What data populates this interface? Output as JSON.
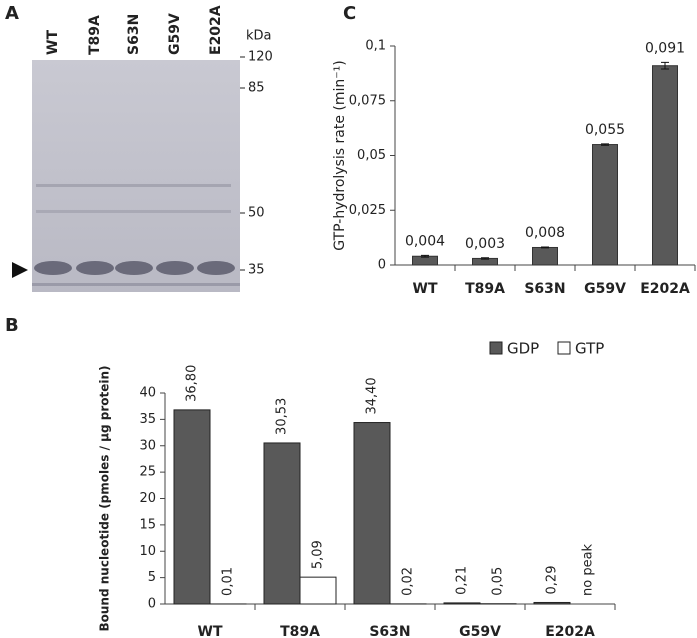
{
  "gel": {
    "panel_label": "A",
    "lanes": [
      "WT",
      "T89A",
      "S63N",
      "G59V",
      "E202A"
    ],
    "unit": "kDa",
    "markers": [
      120,
      85,
      50,
      35
    ]
  },
  "chart_data": [
    {
      "type": "bar",
      "panel_label": "C",
      "y_label": "GTP-hydrolysis rate (min⁻¹)",
      "categories": [
        "WT",
        "T89A",
        "S63N",
        "G59V",
        "E202A"
      ],
      "values": [
        0.004,
        0.003,
        0.008,
        0.055,
        0.091
      ],
      "value_labels": [
        "0,004",
        "0,003",
        "0,008",
        "0,055",
        "0,091"
      ],
      "errors": [
        0.0004,
        0.0003,
        0.0002,
        0.0003,
        0.0015
      ],
      "color": "#595959",
      "ylim": [
        0,
        0.1
      ],
      "yticks": [
        0,
        {
          "value": 0.025,
          "label": "0,025"
        },
        {
          "value": 0.05,
          "label": "0,05"
        },
        {
          "value": 0.075,
          "label": "0,075"
        },
        {
          "value": 0.1,
          "label": "0,1"
        }
      ]
    },
    {
      "type": "grouped-bar",
      "panel_label": "B",
      "y_label": "Bound nucleotide (pmoles / µg protein)",
      "categories": [
        "WT",
        "T89A",
        "S63N",
        "G59V",
        "E202A"
      ],
      "series": [
        {
          "name": "GDP",
          "color": "#595959",
          "values": [
            36.8,
            30.53,
            34.4,
            0.21,
            0.29
          ],
          "value_labels": [
            "36,80",
            "30,53",
            "34,40",
            "0,21",
            "0,29"
          ]
        },
        {
          "name": "GTP",
          "color": "#ffffff",
          "values": [
            0.01,
            5.09,
            0.02,
            0.05,
            null
          ],
          "value_labels": [
            "0,01",
            "5,09",
            "0,02",
            "0,05",
            null
          ]
        }
      ],
      "annotation": "no peak",
      "ylim": [
        0,
        40
      ],
      "yticks": [
        0,
        5,
        10,
        15,
        20,
        25,
        30,
        35,
        40
      ],
      "legend": "top-right"
    }
  ]
}
